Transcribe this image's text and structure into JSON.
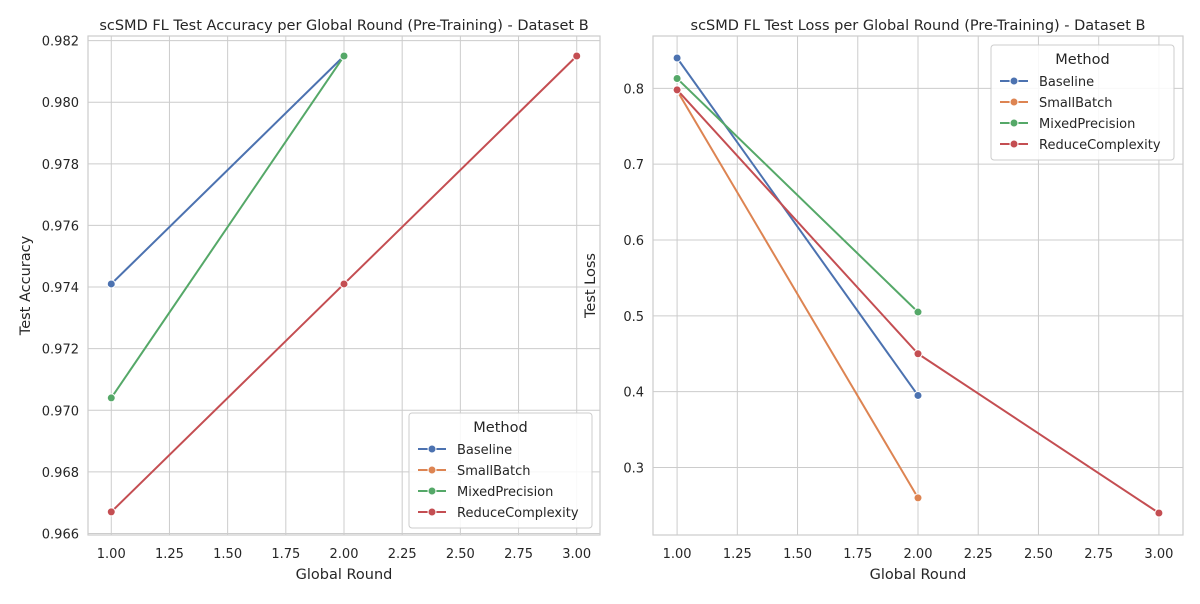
{
  "chart_data": [
    {
      "type": "line",
      "title": "scSMD FL Test Accuracy per Global Round (Pre-Training) - Dataset B",
      "xlabel": "Global Round",
      "ylabel": "Test Accuracy",
      "xlim": [
        0.9,
        3.1
      ],
      "ylim": [
        0.96595,
        0.98215
      ],
      "x_ticks": [
        "1.00",
        "1.25",
        "1.50",
        "1.75",
        "2.00",
        "2.25",
        "2.50",
        "2.75",
        "3.00"
      ],
      "y_ticks": [
        "0.966",
        "0.968",
        "0.970",
        "0.972",
        "0.974",
        "0.976",
        "0.978",
        "0.980",
        "0.982"
      ],
      "grid": true,
      "legend": {
        "title": "Method",
        "position": "bottom-right"
      },
      "series": [
        {
          "name": "Baseline",
          "color": "#4c72b0",
          "x": [
            1,
            2
          ],
          "y": [
            0.9741,
            0.9815
          ]
        },
        {
          "name": "SmallBatch",
          "color": "#dd8452",
          "x": [],
          "y": []
        },
        {
          "name": "MixedPrecision",
          "color": "#55a868",
          "x": [
            1,
            2
          ],
          "y": [
            0.9704,
            0.9815
          ]
        },
        {
          "name": "ReduceComplexity",
          "color": "#c44e52",
          "x": [
            1,
            2,
            3
          ],
          "y": [
            0.9667,
            0.9741,
            0.9815
          ]
        }
      ]
    },
    {
      "type": "line",
      "title": "scSMD FL Test Loss per Global Round (Pre-Training) - Dataset B",
      "xlabel": "Global Round",
      "ylabel": "Test Loss",
      "xlim": [
        0.9,
        3.1
      ],
      "ylim": [
        0.211,
        0.869
      ],
      "x_ticks": [
        "1.00",
        "1.25",
        "1.50",
        "1.75",
        "2.00",
        "2.25",
        "2.50",
        "2.75",
        "3.00"
      ],
      "y_ticks": [
        "0.3",
        "0.4",
        "0.5",
        "0.6",
        "0.7",
        "0.8"
      ],
      "grid": true,
      "legend": {
        "title": "Method",
        "position": "top-right"
      },
      "series": [
        {
          "name": "Baseline",
          "color": "#4c72b0",
          "x": [
            1,
            2
          ],
          "y": [
            0.84,
            0.395
          ]
        },
        {
          "name": "SmallBatch",
          "color": "#dd8452",
          "x": [
            1,
            2
          ],
          "y": [
            0.797,
            0.26
          ]
        },
        {
          "name": "MixedPrecision",
          "color": "#55a868",
          "x": [
            1,
            2
          ],
          "y": [
            0.813,
            0.505
          ]
        },
        {
          "name": "ReduceComplexity",
          "color": "#c44e52",
          "x": [
            1,
            2,
            3
          ],
          "y": [
            0.798,
            0.45,
            0.24
          ]
        }
      ]
    }
  ]
}
